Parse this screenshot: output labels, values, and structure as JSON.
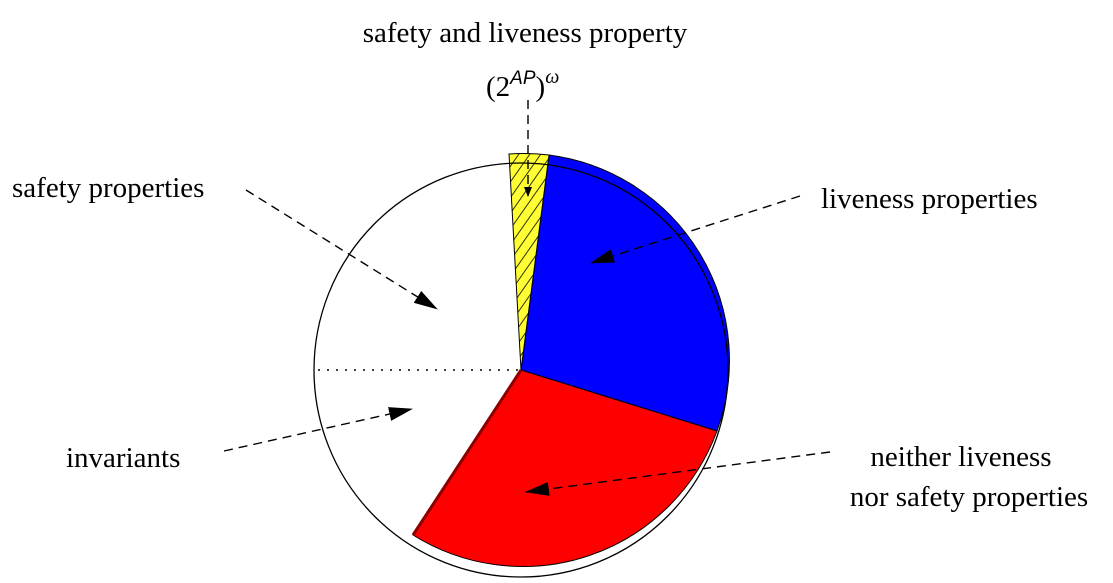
{
  "labels": {
    "top_title": "safety and liveness property",
    "universe_base_open": "(2",
    "universe_exponent": "AP",
    "universe_close": ")",
    "universe_omega": "ω",
    "safety": "safety properties",
    "liveness": "liveness properties",
    "invariants": "invariants",
    "neither_line1": "neither liveness",
    "neither_line2": "nor safety properties"
  },
  "colors": {
    "liveness_region": "#0000ff",
    "neither_region": "#ff0000",
    "safety_and_liveness_region": "#ffff33",
    "safety_region": "#ffffff",
    "invariants_region": "#ffffff",
    "outline": "#000000"
  }
}
